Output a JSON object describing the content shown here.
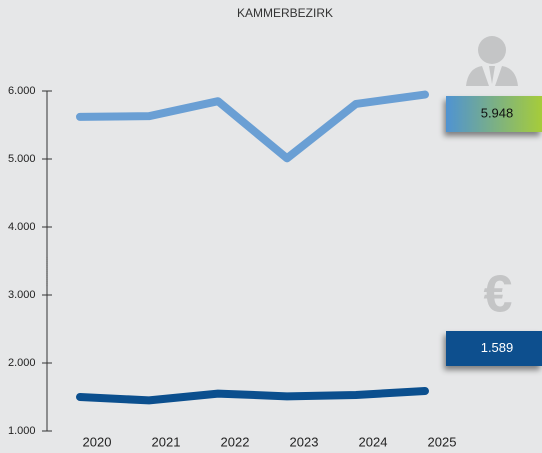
{
  "chart_data": {
    "type": "line",
    "title": "KAMMERBEZIRK",
    "categories": [
      "2020",
      "2021",
      "2022",
      "2023",
      "2024",
      "2025"
    ],
    "series": [
      {
        "color": "#6a9fd4",
        "values": [
          5620,
          5630,
          5850,
          5010,
          5810,
          5948
        ],
        "value_labels": [
          null,
          null,
          null,
          null,
          null,
          "5.948"
        ]
      },
      {
        "color": "#0b4f8e",
        "values": [
          1500,
          1450,
          1550,
          1510,
          1530,
          1589
        ],
        "value_labels": [
          null,
          null,
          null,
          null,
          null,
          "1.589"
        ]
      }
    ],
    "ylim": [
      1000,
      6000
    ],
    "yticks": [
      {
        "value": 1000,
        "label": "1.000"
      },
      {
        "value": 2000,
        "label": "2.000"
      },
      {
        "value": 3000,
        "label": "3.000"
      },
      {
        "value": 4000,
        "label": "4.000"
      },
      {
        "value": 5000,
        "label": "5.000"
      },
      {
        "value": 6000,
        "label": "6.000"
      }
    ]
  }
}
